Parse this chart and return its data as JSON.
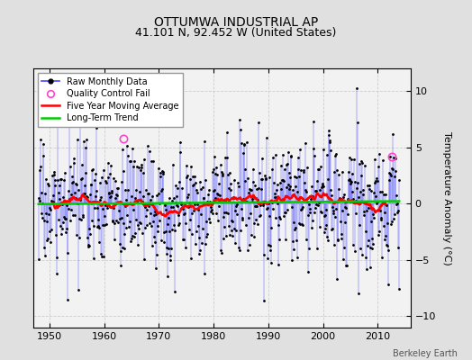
{
  "title": "OTTUMWA INDUSTRIAL AP",
  "subtitle": "41.101 N, 92.452 W (United States)",
  "ylabel": "Temperature Anomaly (°C)",
  "credit": "Berkeley Earth",
  "xlim": [
    1947,
    2016
  ],
  "ylim": [
    -11,
    12
  ],
  "yticks": [
    -10,
    -5,
    0,
    5,
    10
  ],
  "xticks": [
    1950,
    1960,
    1970,
    1980,
    1990,
    2000,
    2010
  ],
  "start_year": 1948,
  "n_months": 792,
  "seed": 17,
  "qc_fail_dates": [
    1963.5,
    2012.5
  ],
  "qc_fail_values": [
    5.8,
    4.2
  ],
  "bg_color": "#e0e0e0",
  "plot_bg_color": "#f2f2f2",
  "raw_line_color": "#4444ff",
  "raw_dot_color": "#000000",
  "moving_avg_color": "#ff0000",
  "trend_color": "#00cc00",
  "qc_color": "#ff44cc",
  "title_fontsize": 10,
  "subtitle_fontsize": 9,
  "tick_labelsize": 8,
  "legend_fontsize": 7,
  "ylabel_fontsize": 8,
  "credit_fontsize": 7
}
